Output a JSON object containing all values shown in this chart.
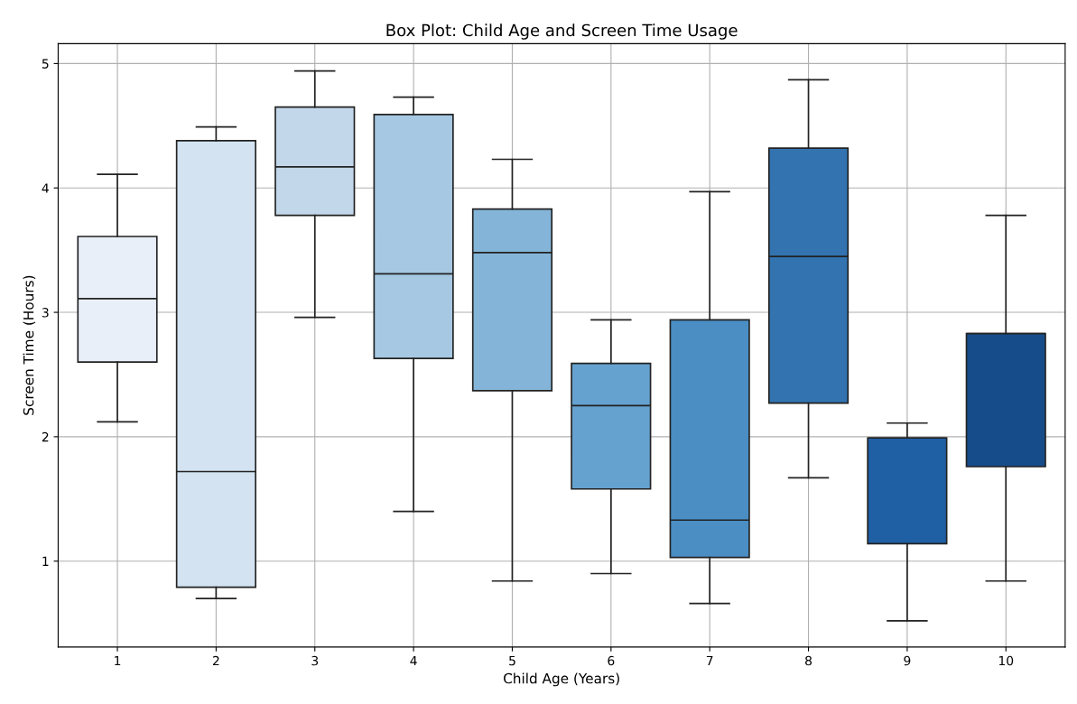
{
  "chart_data": {
    "type": "box",
    "title": "Box Plot: Child Age and Screen Time Usage",
    "xlabel": "Child Age (Years)",
    "ylabel": "Screen Time (Hours)",
    "categories": [
      "1",
      "2",
      "3",
      "4",
      "5",
      "6",
      "7",
      "8",
      "9",
      "10"
    ],
    "colors": [
      "#e8eff8",
      "#d3e3f1",
      "#c3d7ea",
      "#a6c8e2",
      "#84b5d8",
      "#65a2d0",
      "#4a8ec4",
      "#3273b0",
      "#1f5fa3",
      "#174c8a"
    ],
    "boxes": [
      {
        "low": 2.12,
        "q1": 2.6,
        "median": 3.11,
        "q3": 3.61,
        "high": 4.11
      },
      {
        "low": 0.7,
        "q1": 0.79,
        "median": 1.72,
        "q3": 4.38,
        "high": 4.49
      },
      {
        "low": 2.96,
        "q1": 3.78,
        "median": 4.17,
        "q3": 4.65,
        "high": 4.94
      },
      {
        "low": 1.4,
        "q1": 2.63,
        "median": 3.31,
        "q3": 4.59,
        "high": 4.73
      },
      {
        "low": 0.84,
        "q1": 2.37,
        "median": 3.48,
        "q3": 3.83,
        "high": 4.23
      },
      {
        "low": 0.9,
        "q1": 1.58,
        "median": 2.25,
        "q3": 2.59,
        "high": 2.94
      },
      {
        "low": 0.66,
        "q1": 1.03,
        "median": 1.33,
        "q3": 2.94,
        "high": 3.97
      },
      {
        "low": 1.67,
        "q1": 2.27,
        "median": 3.45,
        "q3": 4.32,
        "high": 4.87
      },
      {
        "low": 0.52,
        "q1": 1.14,
        "median": 1.99,
        "q3": 1.99,
        "high": 2.11
      },
      {
        "low": 0.84,
        "q1": 1.76,
        "median": 2.83,
        "q3": 2.83,
        "high": 3.78
      }
    ],
    "ylim": [
      0.31,
      5.16
    ],
    "yticks": [
      1,
      2,
      3,
      4,
      5
    ],
    "grid": true
  }
}
